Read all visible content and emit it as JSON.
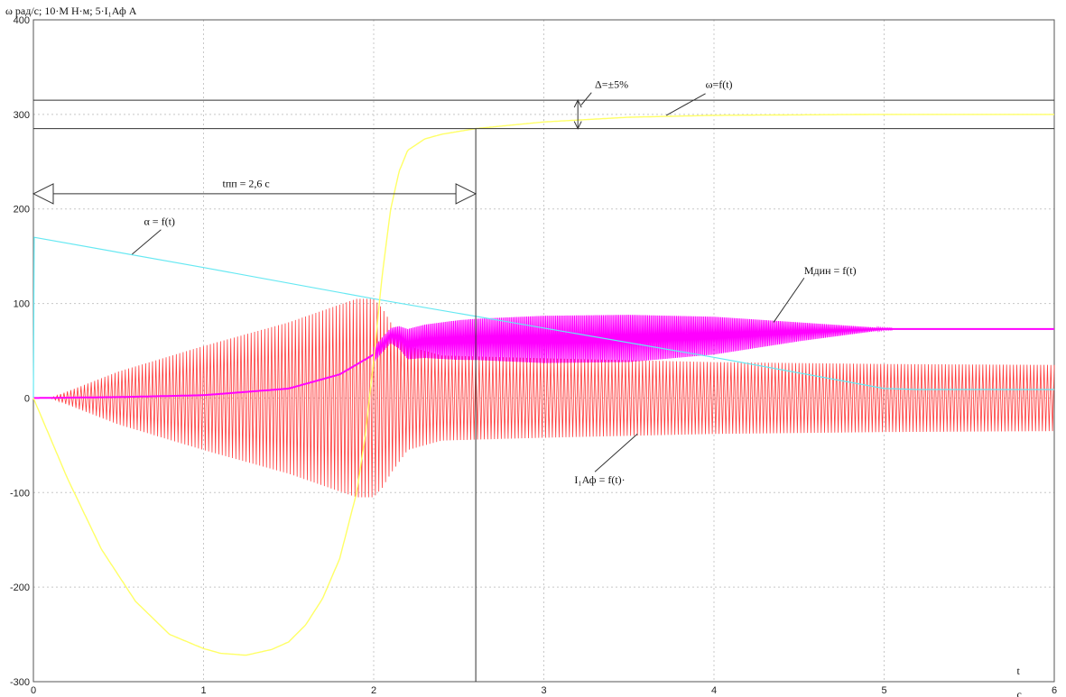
{
  "chart_data": {
    "type": "line",
    "title": "ω рад/с; 10·М Н·м; 5·I₁Аф А",
    "x_axis_label": "t",
    "x_axis_unit": "c",
    "xlim": [
      0,
      6
    ],
    "ylim": [
      -300,
      400
    ],
    "x_ticks": [
      "0",
      "1",
      "2",
      "3",
      "4",
      "5",
      "6"
    ],
    "y_ticks": [
      "-300",
      "-200",
      "-100",
      "0",
      "100",
      "200",
      "300",
      "400"
    ],
    "grid": true,
    "series": [
      {
        "name": "ω=f(t)",
        "color": "#ffff66",
        "points": [
          [
            0,
            0
          ],
          [
            0.2,
            -85
          ],
          [
            0.4,
            -160
          ],
          [
            0.6,
            -215
          ],
          [
            0.8,
            -250
          ],
          [
            1.0,
            -265
          ],
          [
            1.1,
            -270
          ],
          [
            1.25,
            -272
          ],
          [
            1.4,
            -266
          ],
          [
            1.5,
            -258
          ],
          [
            1.6,
            -240
          ],
          [
            1.7,
            -212
          ],
          [
            1.8,
            -170
          ],
          [
            1.9,
            -100
          ],
          [
            1.95,
            -40
          ],
          [
            2.0,
            40
          ],
          [
            2.05,
            130
          ],
          [
            2.1,
            200
          ],
          [
            2.15,
            240
          ],
          [
            2.2,
            262
          ],
          [
            2.3,
            274
          ],
          [
            2.4,
            279
          ],
          [
            2.6,
            285
          ],
          [
            3.0,
            292
          ],
          [
            3.5,
            297
          ],
          [
            4.0,
            299
          ],
          [
            5.0,
            300
          ],
          [
            6.0,
            300
          ]
        ]
      },
      {
        "name": "α = f(t)",
        "color": "#66e8f2",
        "points": [
          [
            0,
            0
          ],
          [
            0.005,
            170
          ],
          [
            1.0,
            138
          ],
          [
            2.0,
            105
          ],
          [
            3.0,
            74
          ],
          [
            4.0,
            43
          ],
          [
            5.0,
            10
          ],
          [
            5.2,
            9
          ],
          [
            6.0,
            9
          ]
        ]
      },
      {
        "name": "Mдин = f(t)",
        "color": "#ff00ff",
        "center_points": [
          [
            0,
            0
          ],
          [
            0.5,
            1
          ],
          [
            1.0,
            3
          ],
          [
            1.5,
            10
          ],
          [
            1.8,
            25
          ],
          [
            2.0,
            46
          ],
          [
            2.1,
            66
          ],
          [
            2.15,
            64
          ],
          [
            2.2,
            57
          ],
          [
            2.3,
            60
          ],
          [
            2.6,
            62
          ],
          [
            3.0,
            62
          ],
          [
            3.5,
            63
          ],
          [
            4.0,
            66
          ],
          [
            4.5,
            70
          ],
          [
            5.0,
            73
          ],
          [
            6.0,
            73
          ]
        ],
        "envelope_points": [
          [
            0,
            0
          ],
          [
            1.5,
            2
          ],
          [
            2.0,
            8
          ],
          [
            2.1,
            8
          ],
          [
            2.2,
            16
          ],
          [
            2.5,
            21
          ],
          [
            3.0,
            25
          ],
          [
            3.5,
            25
          ],
          [
            4.0,
            20
          ],
          [
            4.5,
            10
          ],
          [
            5.0,
            1
          ],
          [
            6.0,
            0
          ]
        ]
      },
      {
        "name": "I₁Аф = f(t)",
        "color": "#ff3b3b",
        "envelope_points": [
          [
            0,
            0
          ],
          [
            0.1,
            0
          ],
          [
            0.5,
            28
          ],
          [
            1.0,
            55
          ],
          [
            1.5,
            80
          ],
          [
            1.9,
            105
          ],
          [
            2.0,
            105
          ],
          [
            2.05,
            95
          ],
          [
            2.1,
            80
          ],
          [
            2.2,
            55
          ],
          [
            2.4,
            45
          ],
          [
            3.0,
            42
          ],
          [
            4.0,
            38
          ],
          [
            5.0,
            36
          ],
          [
            6.0,
            35
          ]
        ]
      }
    ],
    "annotations": {
      "omega_label": "ω=f(t)",
      "delta_label": "Δ=±5%",
      "alpha_label": "α = f(t)",
      "moment_label": "Mдин = f(t)",
      "current_label": "I₁Аф = f(t)·",
      "time_label": "tпп = 2,6 c",
      "settling_time": 2.6,
      "band_upper": 315,
      "band_lower": 285,
      "delta_marker_t": 3.2
    }
  }
}
